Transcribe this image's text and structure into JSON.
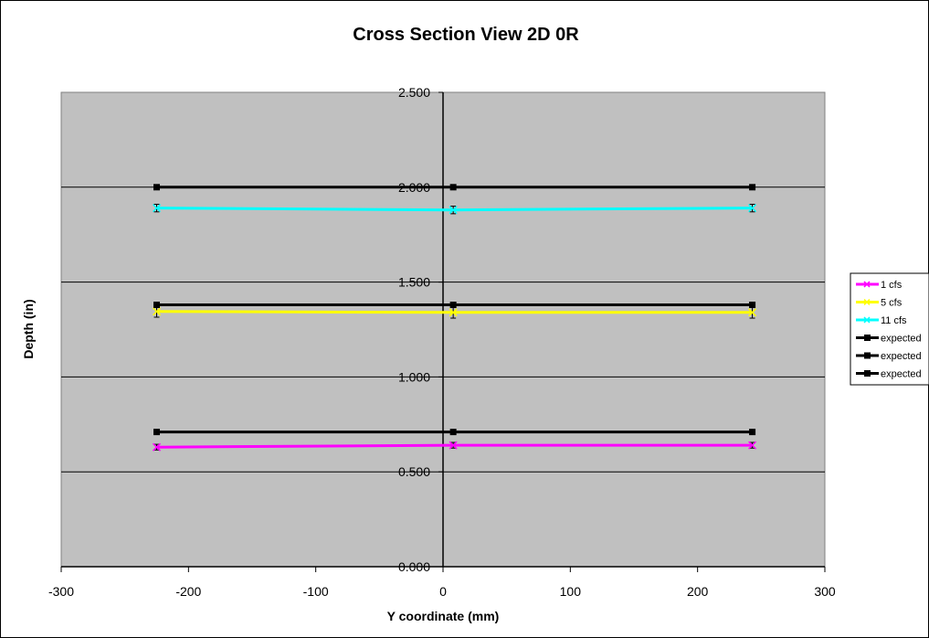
{
  "chart_data": {
    "type": "line",
    "title": "Cross Section View 2D 0R",
    "xlabel": "Y coordinate (mm)",
    "ylabel": "Depth (in)",
    "xlim": [
      -300,
      300
    ],
    "ylim": [
      0,
      2.5
    ],
    "x_ticks": [
      "-300",
      "-200",
      "-100",
      "0",
      "100",
      "200",
      "300"
    ],
    "y_ticks": [
      "0.000",
      "0.500",
      "1.000",
      "1.500",
      "2.000",
      "2.500"
    ],
    "grid": "horizontal",
    "legend_position": "right",
    "plot_background": "#c0c0c0",
    "series": [
      {
        "name": "1 cfs",
        "color": "#ff00ff",
        "marker": "x",
        "x": [
          -225,
          8,
          243
        ],
        "y": [
          0.63,
          0.64,
          0.64
        ],
        "error": [
          0.015,
          0.015,
          0.015
        ]
      },
      {
        "name": "5 cfs",
        "color": "#ffff00",
        "marker": "x",
        "x": [
          -225,
          8,
          243
        ],
        "y": [
          1.345,
          1.34,
          1.34
        ],
        "error": [
          0.03,
          0.03,
          0.03
        ]
      },
      {
        "name": "11 cfs",
        "color": "#00ffff",
        "marker": "x",
        "x": [
          -225,
          8,
          243
        ],
        "y": [
          1.89,
          1.88,
          1.89
        ],
        "error": [
          0.02,
          0.02,
          0.02
        ]
      },
      {
        "name": "expected",
        "color": "#000000",
        "marker": "square",
        "x": [
          -225,
          8,
          243
        ],
        "y": [
          0.71,
          0.71,
          0.71
        ]
      },
      {
        "name": "expected",
        "color": "#000000",
        "marker": "square",
        "x": [
          -225,
          8,
          243
        ],
        "y": [
          1.38,
          1.38,
          1.38
        ]
      },
      {
        "name": "expected",
        "color": "#000000",
        "marker": "square",
        "x": [
          -225,
          8,
          243
        ],
        "y": [
          2.0,
          2.0,
          2.0
        ]
      }
    ]
  }
}
